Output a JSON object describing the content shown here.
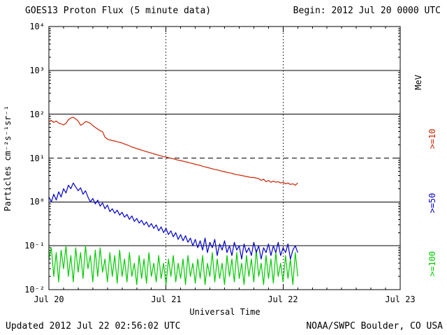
{
  "header": {
    "begin_label": "Begin: 2012 Jul 20 0000 UTC"
  },
  "footer": {
    "updated": "Updated 2012 Jul 22 02:56:02 UTC",
    "source": "NOAA/SWPC Boulder, CO USA"
  },
  "chart_data": {
    "type": "line",
    "title": "GOES13 Proton Flux (5 minute data)",
    "xlabel": "Universal Time",
    "ylabel": "Particles cm⁻²s⁻¹sr⁻¹",
    "unit_label": "MeV",
    "x_tick_labels": [
      "Jul 20",
      "Jul 21",
      "Jul 22",
      "Jul 23"
    ],
    "x_tick_days": [
      0,
      1,
      2,
      3
    ],
    "y_tick_labels": [
      "10⁴",
      "10³",
      "10²",
      "10¹",
      "10⁰",
      "10⁻¹",
      "10⁻²"
    ],
    "y_tick_logs": [
      4,
      3,
      2,
      1,
      0,
      -1,
      -2
    ],
    "xlim_days": [
      0,
      3
    ],
    "ylim_log": [
      -2,
      4
    ],
    "grid_solid_logs": [
      3,
      2,
      0,
      -1
    ],
    "grid_dashed_logs": [
      1
    ],
    "day_gridlines": [
      1,
      2
    ],
    "x_start_hours": 0,
    "x_step_hours": 0.5,
    "series": [
      {
        "name": ">=100",
        "color": "#00cc00",
        "values": [
          0.05,
          0.09,
          0.02,
          0.07,
          0.015,
          0.08,
          0.03,
          0.1,
          0.02,
          0.06,
          0.015,
          0.09,
          0.025,
          0.07,
          0.018,
          0.1,
          0.03,
          0.06,
          0.015,
          0.08,
          0.02,
          0.09,
          0.025,
          0.05,
          0.015,
          0.07,
          0.02,
          0.06,
          0.014,
          0.08,
          0.02,
          0.05,
          0.015,
          0.07,
          0.02,
          0.04,
          0.013,
          0.06,
          0.018,
          0.05,
          0.014,
          0.07,
          0.02,
          0.04,
          0.015,
          0.06,
          0.018,
          0.04,
          0.013,
          0.05,
          0.02,
          0.06,
          0.015,
          0.04,
          0.018,
          0.05,
          0.013,
          0.06,
          0.02,
          0.04,
          0.014,
          0.05,
          0.018,
          0.06,
          0.013,
          0.04,
          0.02,
          0.07,
          0.015,
          0.05,
          0.018,
          0.04,
          0.013,
          0.06,
          0.02,
          0.05,
          0.015,
          0.07,
          0.018,
          0.04,
          0.013,
          0.06,
          0.02,
          0.05,
          0.015,
          0.08,
          0.02,
          0.04,
          0.013,
          0.06,
          0.018,
          0.05,
          0.014,
          0.07,
          0.02,
          0.04,
          0.015,
          0.06,
          0.018,
          0.05,
          0.013,
          0.07,
          0.02
        ]
      },
      {
        "name": ">=50",
        "color": "#0000cc",
        "values": [
          1.3,
          1.0,
          1.5,
          1.1,
          1.7,
          1.3,
          2.0,
          1.6,
          2.4,
          2.0,
          2.7,
          2.2,
          1.8,
          2.1,
          1.5,
          1.8,
          1.3,
          1.0,
          1.2,
          0.9,
          1.1,
          0.8,
          0.95,
          0.7,
          0.85,
          0.6,
          0.7,
          0.55,
          0.65,
          0.5,
          0.58,
          0.45,
          0.52,
          0.4,
          0.48,
          0.36,
          0.42,
          0.33,
          0.38,
          0.3,
          0.35,
          0.27,
          0.32,
          0.25,
          0.3,
          0.22,
          0.27,
          0.2,
          0.25,
          0.18,
          0.22,
          0.16,
          0.2,
          0.14,
          0.18,
          0.13,
          0.17,
          0.12,
          0.15,
          0.1,
          0.14,
          0.09,
          0.13,
          0.08,
          0.15,
          0.07,
          0.12,
          0.09,
          0.14,
          0.06,
          0.11,
          0.08,
          0.13,
          0.07,
          0.1,
          0.06,
          0.12,
          0.08,
          0.1,
          0.05,
          0.11,
          0.07,
          0.09,
          0.06,
          0.12,
          0.07,
          0.1,
          0.05,
          0.09,
          0.07,
          0.11,
          0.06,
          0.1,
          0.07,
          0.12,
          0.06,
          0.09,
          0.07,
          0.11,
          0.05,
          0.08,
          0.1,
          0.07
        ]
      },
      {
        "name": ">=10",
        "color": "#cc2200",
        "values": [
          68,
          72,
          65,
          70,
          63,
          60,
          57,
          62,
          75,
          82,
          85,
          78,
          70,
          56,
          60,
          68,
          66,
          62,
          55,
          50,
          46,
          42,
          40,
          30,
          27,
          26,
          25,
          24.5,
          23.5,
          23,
          22,
          21,
          20,
          19,
          18,
          17.2,
          16.5,
          15.8,
          15.2,
          14.6,
          14,
          13.5,
          13,
          12.5,
          12,
          11.6,
          11.2,
          10.8,
          10.5,
          10.2,
          9.9,
          9.6,
          9.3,
          9.0,
          8.8,
          8.5,
          8.2,
          8.0,
          7.7,
          7.5,
          7.2,
          7.0,
          6.8,
          6.5,
          6.3,
          6.1,
          5.9,
          5.7,
          5.5,
          5.4,
          5.2,
          5.0,
          4.9,
          4.7,
          4.6,
          4.5,
          4.3,
          4.2,
          4.1,
          4.0,
          3.9,
          3.8,
          3.7,
          3.6,
          3.6,
          3.5,
          3.4,
          3.1,
          3.3,
          2.9,
          3.1,
          2.8,
          3.0,
          2.8,
          2.9,
          2.7,
          2.8,
          2.6,
          2.7,
          2.5,
          2.6,
          2.4,
          2.7
        ]
      }
    ]
  }
}
